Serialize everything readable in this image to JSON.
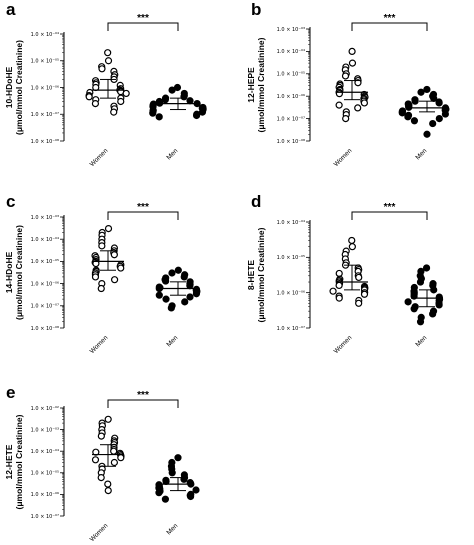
{
  "chart_data": [
    {
      "panel": "a",
      "type": "scatter",
      "scale": "log",
      "ylabel": "10-HDoHE",
      "yunit": "(μmol/mmol Creatinine)",
      "ylim": [
        1e-08,
        0.0001
      ],
      "yticks": [
        "1.0 × 10⁻⁰⁸",
        "1.0 × 10⁻⁰⁷",
        "1.0 × 10⁻⁰⁶",
        "1.0 × 10⁻⁰⁵",
        "1.0 × 10⁻⁰⁴"
      ],
      "categories": [
        "Women",
        "Men"
      ],
      "significance": "***",
      "series": [
        {
          "name": "Women",
          "marker": "open",
          "median": 8e-07,
          "iqr": [
            4e-07,
            2e-06
          ],
          "values": [
            2e-05,
            1e-05,
            6e-06,
            5e-06,
            4e-06,
            3e-06,
            2.5e-06,
            2e-06,
            1.8e-06,
            1.5e-06,
            1.3e-06,
            1.2e-06,
            1e-06,
            9e-07,
            8e-07,
            7.5e-07,
            7e-07,
            6.5e-07,
            6e-07,
            5e-07,
            4.5e-07,
            4e-07,
            3.5e-07,
            3e-07,
            2.5e-07,
            2e-07,
            1.6e-07,
            1.2e-07
          ]
        },
        {
          "name": "Men",
          "marker": "filled",
          "median": 2.5e-07,
          "iqr": [
            1.5e-07,
            4e-07
          ],
          "values": [
            1e-06,
            8e-07,
            6e-07,
            5e-07,
            4.5e-07,
            4e-07,
            3.5e-07,
            3.2e-07,
            3e-07,
            2.8e-07,
            2.6e-07,
            2.5e-07,
            2.4e-07,
            2.2e-07,
            2e-07,
            1.9e-07,
            1.8e-07,
            1.7e-07,
            1.6e-07,
            1.5e-07,
            1.4e-07,
            1.3e-07,
            1.2e-07,
            1.1e-07,
            1e-07,
            9e-08,
            8e-08
          ]
        }
      ]
    },
    {
      "panel": "b",
      "type": "scatter",
      "scale": "log",
      "ylabel": "12-HEPE",
      "yunit": "(μmol/mmol Creatinine)",
      "ylim": [
        1e-08,
        0.001
      ],
      "yticks": [
        "1.0 × 10⁻⁰⁸",
        "1.0 × 10⁻⁰⁷",
        "1.0 × 10⁻⁰⁶",
        "1.0 × 10⁻⁰⁵",
        "1.0 × 10⁻⁰⁴",
        "1.0 × 10⁻⁰³"
      ],
      "categories": [
        "Women",
        "Men"
      ],
      "significance": "***",
      "series": [
        {
          "name": "Women",
          "marker": "open",
          "median": 1.5e-06,
          "iqr": [
            7e-07,
            5e-06
          ],
          "values": [
            0.0001,
            3e-05,
            2e-05,
            1.5e-05,
            1e-05,
            8e-06,
            6e-06,
            5e-06,
            4e-06,
            3.5e-06,
            3e-06,
            2.5e-06,
            2e-06,
            1.8e-06,
            1.5e-06,
            1.3e-06,
            1.2e-06,
            1e-06,
            9e-07,
            8e-07,
            7e-07,
            6e-07,
            5e-07,
            4e-07,
            3e-07,
            2e-07,
            1.5e-07,
            1e-07
          ]
        },
        {
          "name": "Men",
          "marker": "filled",
          "median": 3e-07,
          "iqr": [
            2e-07,
            6e-07
          ],
          "values": [
            2e-06,
            1.5e-06,
            1.2e-06,
            1e-06,
            8e-07,
            7e-07,
            6e-07,
            5.5e-07,
            5e-07,
            4.5e-07,
            4e-07,
            3.5e-07,
            3.2e-07,
            3e-07,
            2.8e-07,
            2.6e-07,
            2.4e-07,
            2.2e-07,
            2e-07,
            1.8e-07,
            1.6e-07,
            1.4e-07,
            1.2e-07,
            1e-07,
            8e-08,
            6e-08,
            2e-08
          ]
        }
      ]
    },
    {
      "panel": "c",
      "type": "scatter",
      "scale": "log",
      "ylabel": "14-HDoHE",
      "yunit": "(μmol/mmol Creatinine)",
      "ylim": [
        1e-08,
        0.001
      ],
      "yticks": [
        "1.0 × 10⁻⁰⁸",
        "1.0 × 10⁻⁰⁷",
        "1.0 × 10⁻⁰⁶",
        "1.0 × 10⁻⁰⁵",
        "1.0 × 10⁻⁰⁴",
        "1.0 × 10⁻⁰³"
      ],
      "categories": [
        "Women",
        "Men"
      ],
      "significance": "***",
      "series": [
        {
          "name": "Women",
          "marker": "open",
          "median": 1e-05,
          "iqr": [
            4e-06,
            3e-05
          ],
          "values": [
            0.0003,
            0.0002,
            0.00015,
            0.0001,
            7e-05,
            5e-05,
            4e-05,
            3e-05,
            2.5e-05,
            2e-05,
            1.8e-05,
            1.5e-05,
            1.2e-05,
            1e-05,
            9e-06,
            8e-06,
            7e-06,
            6e-06,
            5e-06,
            4e-06,
            3.5e-06,
            3e-06,
            2.5e-06,
            2e-06,
            1.5e-06,
            1e-06,
            6e-07
          ]
        },
        {
          "name": "Men",
          "marker": "filled",
          "median": 6e-07,
          "iqr": [
            3e-07,
            1.2e-06
          ],
          "values": [
            4e-06,
            3e-06,
            2.5e-06,
            2e-06,
            1.8e-06,
            1.5e-06,
            1.3e-06,
            1.2e-06,
            1e-06,
            9e-07,
            8e-07,
            7e-07,
            6.5e-07,
            6e-07,
            5.5e-07,
            5e-07,
            4.5e-07,
            4e-07,
            3.5e-07,
            3e-07,
            2.5e-07,
            2e-07,
            1.5e-07,
            1e-07,
            8e-08
          ]
        }
      ]
    },
    {
      "panel": "d",
      "type": "scatter",
      "scale": "log",
      "ylabel": "8-HETE",
      "yunit": "(μmol/mmol Creatinine)",
      "ylim": [
        1e-07,
        0.0001
      ],
      "yticks": [
        "1.0 × 10⁻⁰⁷",
        "1.0 × 10⁻⁰⁶",
        "1.0 × 10⁻⁰⁵",
        "1.0 × 10⁻⁰⁴"
      ],
      "categories": [
        "Women",
        "Men"
      ],
      "significance": "***",
      "series": [
        {
          "name": "Women",
          "marker": "open",
          "median": 2e-06,
          "iqr": [
            1.2e-06,
            6e-06
          ],
          "values": [
            3e-05,
            2e-05,
            1.5e-05,
            1.2e-05,
            9e-06,
            7e-06,
            6e-06,
            5e-06,
            4.5e-06,
            4e-06,
            3.5e-06,
            3e-06,
            2.7e-06,
            2.4e-06,
            2.2e-06,
            2e-06,
            1.8e-06,
            1.6e-06,
            1.5e-06,
            1.4e-06,
            1.3e-06,
            1.2e-06,
            1.1e-06,
            1e-06,
            9e-07,
            8e-07,
            7e-07,
            6e-07,
            5e-07
          ]
        },
        {
          "name": "Men",
          "marker": "filled",
          "median": 7e-07,
          "iqr": [
            4e-07,
            1.2e-06
          ],
          "values": [
            5e-06,
            4e-06,
            3e-06,
            2.5e-06,
            2e-06,
            1.8e-06,
            1.6e-06,
            1.4e-06,
            1.2e-06,
            1.1e-06,
            1e-06,
            9e-07,
            8e-07,
            7.5e-07,
            7e-07,
            6.5e-07,
            6e-07,
            5.5e-07,
            5e-07,
            4.5e-07,
            4e-07,
            3.5e-07,
            3e-07,
            2.5e-07,
            2e-07,
            1.5e-07
          ]
        }
      ]
    },
    {
      "panel": "e",
      "type": "scatter",
      "scale": "log",
      "ylabel": "12-HETE",
      "yunit": "(μmol/mmol Creatinine)",
      "ylim": [
        1e-07,
        0.01
      ],
      "yticks": [
        "1.0 × 10⁻⁰⁷",
        "1.0 × 10⁻⁰⁶",
        "1.0 × 10⁻⁰⁵",
        "1.0 × 10⁻⁰⁴",
        "1.0 × 10⁻⁰³",
        "1.0 × 10⁻⁰²"
      ],
      "categories": [
        "Women",
        "Men"
      ],
      "significance": "***",
      "series": [
        {
          "name": "Women",
          "marker": "open",
          "median": 7e-05,
          "iqr": [
            2e-05,
            0.0002
          ],
          "values": [
            0.003,
            0.002,
            0.0015,
            0.001,
            0.0007,
            0.0005,
            0.0004,
            0.0003,
            0.00025,
            0.0002,
            0.00015,
            0.00012,
            0.0001,
            9e-05,
            8e-05,
            7e-05,
            6e-05,
            5e-05,
            4e-05,
            3e-05,
            2e-05,
            1.5e-05,
            1e-05,
            6e-06,
            3e-06,
            1.5e-06
          ]
        },
        {
          "name": "Men",
          "marker": "filled",
          "median": 3e-06,
          "iqr": [
            1.5e-06,
            6e-06
          ],
          "values": [
            5e-05,
            3e-05,
            2e-05,
            1.5e-05,
            1e-05,
            8e-06,
            6e-06,
            5e-06,
            4.5e-06,
            4e-06,
            3.5e-06,
            3e-06,
            2.8e-06,
            2.5e-06,
            2.2e-06,
            2e-06,
            1.8e-06,
            1.6e-06,
            1.4e-06,
            1.2e-06,
            1e-06,
            9e-07,
            8e-07,
            6e-07
          ]
        }
      ]
    }
  ]
}
